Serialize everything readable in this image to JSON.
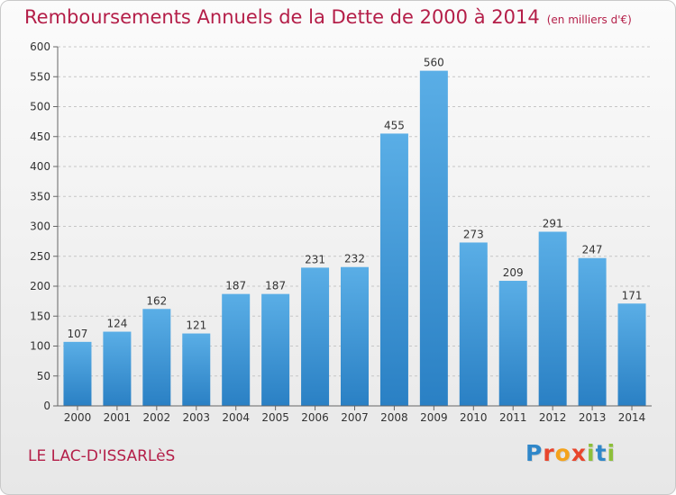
{
  "title": "Remboursements Annuels de la Dette de 2000 à 2014",
  "unit": "(en milliers d'€)",
  "commune": "LE LAC-D'ISSARLèS",
  "logo": {
    "text": "Proxiti",
    "letters": [
      {
        "ch": "P",
        "color": "#2f87c9"
      },
      {
        "ch": "r",
        "color": "#e8452c"
      },
      {
        "ch": "o",
        "color": "#f4a31c"
      },
      {
        "ch": "x",
        "color": "#e8452c"
      },
      {
        "ch": "i",
        "color": "#8dbf3a"
      },
      {
        "ch": "t",
        "color": "#2f87c9"
      },
      {
        "ch": "i",
        "color": "#8dbf3a"
      }
    ]
  },
  "colors": {
    "title": "#b41e48",
    "bar_top": "#5aaee6",
    "bar_bottom": "#2a80c4",
    "axis": "#666666",
    "grid": "#c6c6c6",
    "text": "#333333"
  },
  "chart_data": {
    "type": "bar",
    "title": "Remboursements Annuels de la Dette de 2000 à 2014",
    "subtitle": "(en milliers d'€)",
    "categories": [
      "2000",
      "2001",
      "2002",
      "2003",
      "2004",
      "2005",
      "2006",
      "2007",
      "2008",
      "2009",
      "2010",
      "2011",
      "2012",
      "2013",
      "2014"
    ],
    "values": [
      107,
      124,
      162,
      121,
      187,
      187,
      231,
      232,
      455,
      560,
      273,
      209,
      291,
      247,
      171
    ],
    "ylim": [
      0,
      600
    ],
    "yticks": [
      0,
      50,
      100,
      150,
      200,
      250,
      300,
      350,
      400,
      450,
      500,
      550,
      600
    ],
    "grid": true,
    "legend": "none"
  }
}
